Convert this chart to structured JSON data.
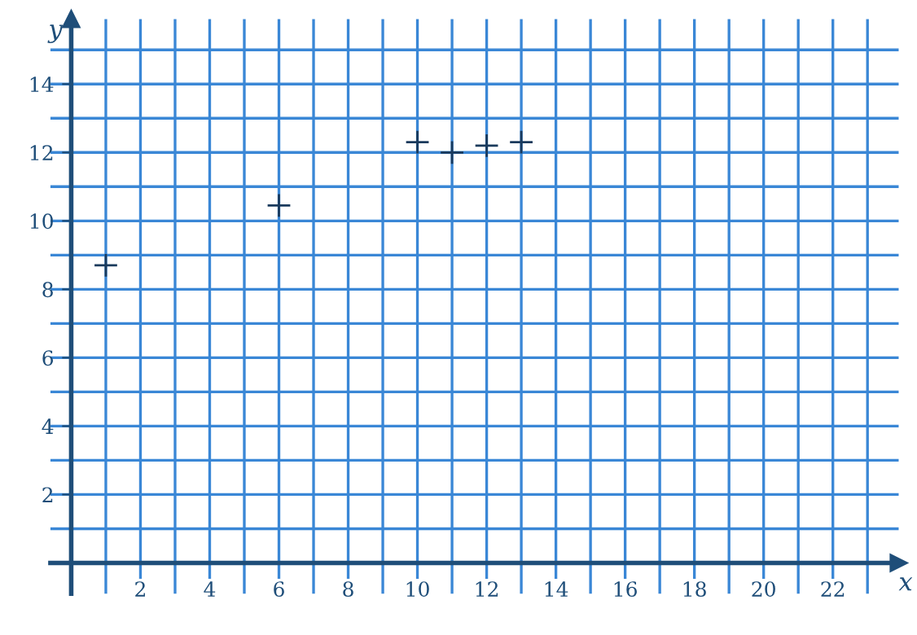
{
  "chart_data": {
    "type": "scatter",
    "xlabel": "x",
    "ylabel": "y",
    "x": [
      1,
      6,
      10,
      11,
      12,
      13
    ],
    "series": [
      {
        "color": "#1a3a5c",
        "values": [
          8.7,
          10.45,
          12.3,
          12.0,
          12.2,
          12.3
        ]
      }
    ],
    "marker": "cross",
    "xlim": [
      -0.6,
      23.9
    ],
    "ylim": [
      -0.9,
      15.9
    ],
    "xticks": [
      2,
      4,
      6,
      8,
      10,
      12,
      14,
      16,
      18,
      20,
      22
    ],
    "yticks": [
      2,
      4,
      6,
      8,
      10,
      12,
      14
    ],
    "grid": true
  }
}
